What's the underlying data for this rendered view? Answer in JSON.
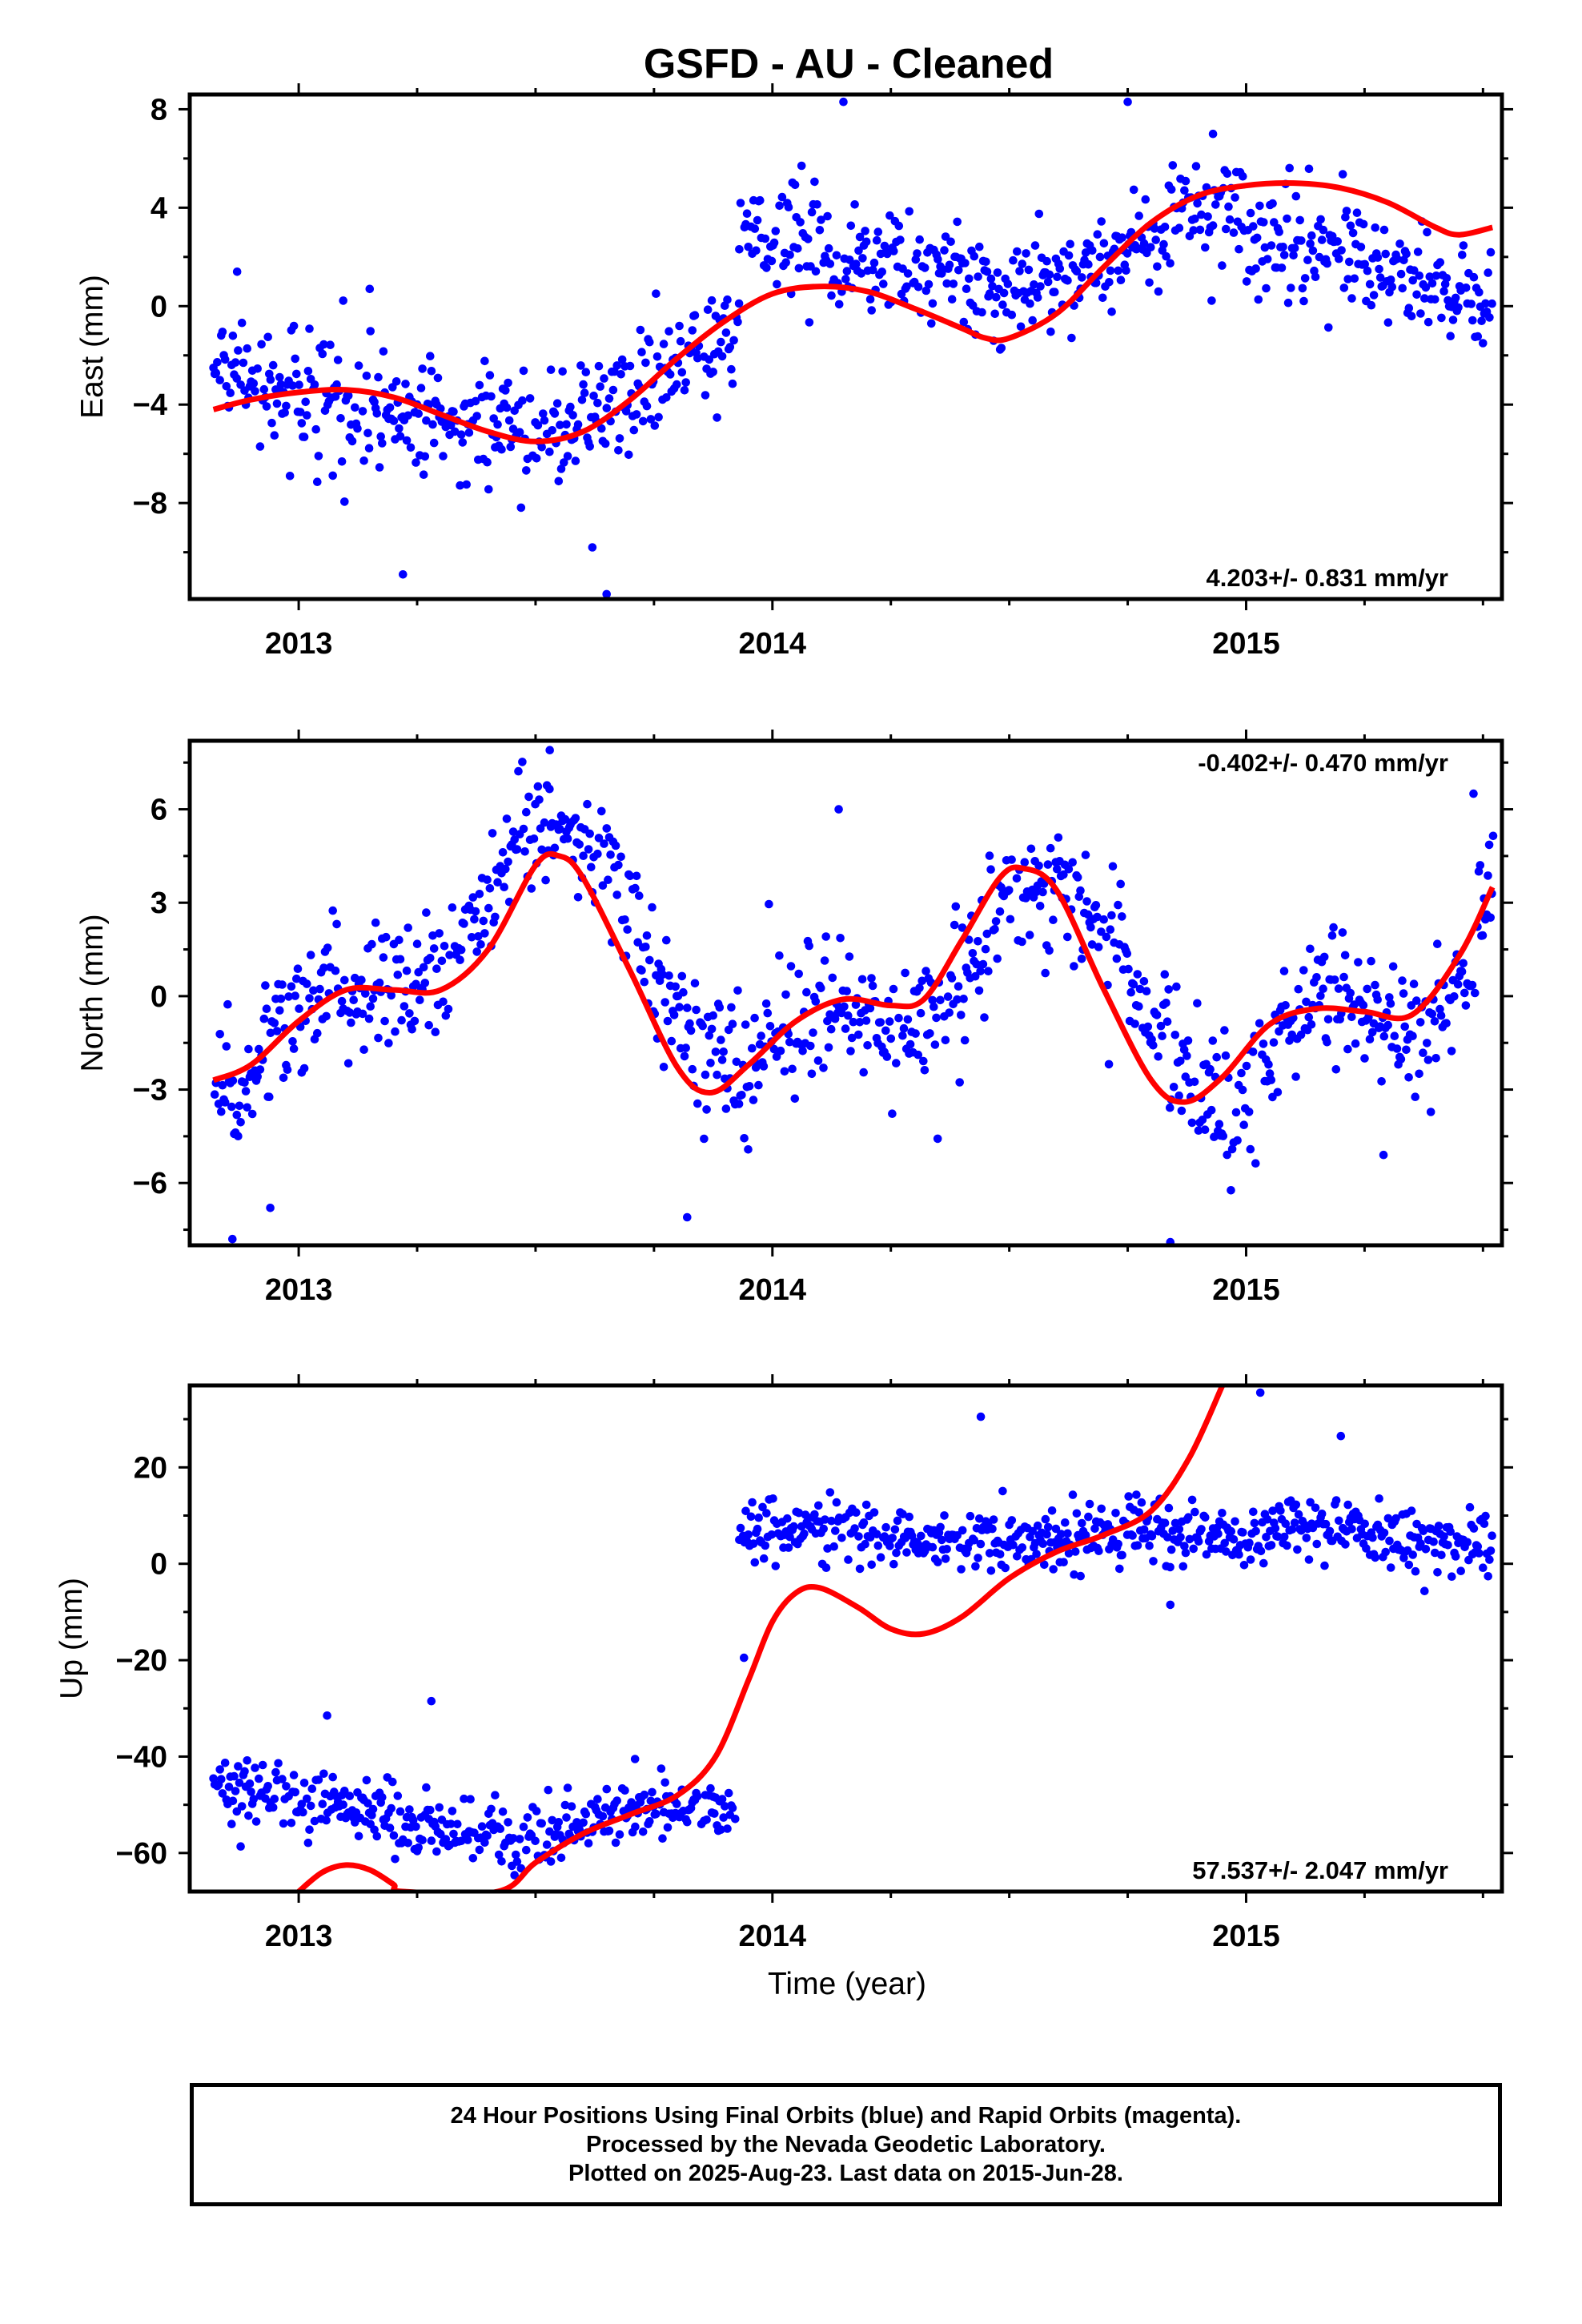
{
  "title": "GSFD  - AU - Cleaned",
  "x_axis_label": "Time (year)",
  "caption": [
    "24 Hour Positions Using Final Orbits (blue) and Rapid Orbits (magenta).",
    "Processed by the Nevada Geodetic Laboratory.",
    "Plotted on 2025-Aug-23. Last data on 2015-Jun-28."
  ],
  "colors": {
    "points": "#0000ff",
    "fit": "#ff0000",
    "axes": "#000000"
  },
  "chart_data": [
    {
      "type": "scatter",
      "ylabel": "East (mm)",
      "rate": "4.203+/- 0.831 mm/yr",
      "rate_position": "bottom-right",
      "xlim": [
        2012.77,
        2015.54
      ],
      "ylim": [
        -11.9,
        8.6
      ],
      "x_ticks": [
        2013,
        2014,
        2015
      ],
      "y_ticks": [
        -8,
        -4,
        0,
        4,
        8
      ],
      "grid": false,
      "point_segments": [
        {
          "x_start": 2012.82,
          "x_end": 2013.93,
          "y": [
            -2.5,
            -3.2,
            -3.5,
            -3.6,
            -4.2,
            -4.6,
            -4.7,
            -5.0,
            -5.2,
            -4.6,
            -4.1,
            -3.0,
            -1.8,
            -0.5
          ],
          "spread": 1.6
        },
        {
          "x_start": 2013.93,
          "x_end": 2015.52,
          "y": [
            4.0,
            3.0,
            2.3,
            1.8,
            1.5,
            1.1,
            1.0,
            0.6,
            0.8,
            1.4,
            2.4,
            3.6,
            4.0,
            3.2,
            2.4,
            2.5,
            2.0,
            1.0,
            0.4,
            0.2
          ],
          "spread": 1.5
        }
      ],
      "outliers": [
        {
          "x": 2013.22,
          "y": -10.9
        },
        {
          "x": 2013.65,
          "y": -11.7
        },
        {
          "x": 2013.62,
          "y": -9.8
        },
        {
          "x": 2014.15,
          "y": 8.3
        },
        {
          "x": 2014.75,
          "y": 8.3
        },
        {
          "x": 2014.93,
          "y": 7.0
        },
        {
          "x": 2012.87,
          "y": 1.4
        },
        {
          "x": 2013.15,
          "y": 0.7
        }
      ],
      "fit": {
        "x": [
          2012.82,
          2012.9,
          2013.0,
          2013.1,
          2013.2,
          2013.3,
          2013.4,
          2013.5,
          2013.6,
          2013.7,
          2013.8,
          2013.9,
          2014.0,
          2014.1,
          2014.2,
          2014.3,
          2014.4,
          2014.45,
          2014.5,
          2014.6,
          2014.7,
          2014.8,
          2014.9,
          2015.0,
          2015.1,
          2015.2,
          2015.3,
          2015.4,
          2015.45,
          2015.52
        ],
        "y": [
          -4.2,
          -3.8,
          -3.5,
          -3.4,
          -3.7,
          -4.4,
          -5.1,
          -5.5,
          -5.1,
          -3.8,
          -2.1,
          -0.6,
          0.5,
          0.8,
          0.6,
          -0.1,
          -0.9,
          -1.3,
          -1.3,
          -0.3,
          1.6,
          3.4,
          4.5,
          4.9,
          5.0,
          4.8,
          4.2,
          3.2,
          2.9,
          3.2
        ]
      }
    },
    {
      "type": "scatter",
      "ylabel": "North (mm)",
      "rate": "-0.402+/- 0.470 mm/yr",
      "rate_position": "top-right",
      "xlim": [
        2012.77,
        2015.54
      ],
      "ylim": [
        -8.0,
        8.2
      ],
      "x_ticks": [
        2013,
        2014,
        2015
      ],
      "y_ticks": [
        -6,
        -3,
        0,
        3,
        6
      ],
      "grid": false,
      "point_segments": [
        {
          "x_start": 2012.82,
          "x_end": 2015.52,
          "y": [
            -3.8,
            -2.2,
            -0.3,
            0.6,
            0.7,
            0.5,
            2.5,
            5.0,
            5.3,
            4.2,
            1.0,
            -1.6,
            -2.5,
            -1.4,
            -0.6,
            -0.9,
            -1.0,
            0.4,
            3.0,
            3.4,
            2.5,
            0.4,
            -2.2,
            -4.0,
            -1.8,
            0.2,
            -0.5,
            -1.2,
            -0.8,
            3.2
          ],
          "spread": 1.4
        }
      ],
      "outliers": [
        {
          "x": 2012.86,
          "y": -7.8
        },
        {
          "x": 2012.94,
          "y": -6.8
        },
        {
          "x": 2014.14,
          "y": 6.0
        },
        {
          "x": 2013.82,
          "y": -7.1
        },
        {
          "x": 2014.84,
          "y": -7.9
        },
        {
          "x": 2013.53,
          "y": 7.9
        },
        {
          "x": 2015.29,
          "y": -5.1
        },
        {
          "x": 2015.48,
          "y": 6.5
        }
      ],
      "fit": {
        "x": [
          2012.82,
          2012.9,
          2013.0,
          2013.1,
          2013.2,
          2013.3,
          2013.4,
          2013.5,
          2013.55,
          2013.6,
          2013.7,
          2013.8,
          2013.87,
          2013.95,
          2014.05,
          2014.15,
          2014.25,
          2014.32,
          2014.4,
          2014.48,
          2014.53,
          2014.6,
          2014.7,
          2014.8,
          2014.87,
          2014.95,
          2015.05,
          2015.15,
          2015.25,
          2015.35,
          2015.45,
          2015.52
        ],
        "y": [
          -2.7,
          -2.2,
          -0.8,
          0.2,
          0.2,
          0.2,
          1.5,
          4.2,
          4.5,
          3.8,
          0.8,
          -2.3,
          -3.1,
          -2.2,
          -0.8,
          -0.1,
          -0.3,
          -0.1,
          1.8,
          3.8,
          4.1,
          3.4,
          0.2,
          -2.7,
          -3.4,
          -2.6,
          -0.9,
          -0.4,
          -0.5,
          -0.6,
          1.3,
          3.5
        ]
      }
    },
    {
      "type": "scatter",
      "ylabel": "Up (mm)",
      "rate": "57.537+/- 2.047 mm/yr",
      "rate_position": "bottom-right",
      "xlim": [
        2012.77,
        2015.54
      ],
      "ylim": [
        -68,
        37
      ],
      "x_ticks": [
        2013,
        2014,
        2015
      ],
      "y_ticks": [
        -60,
        -40,
        -20,
        0,
        20
      ],
      "grid": false,
      "point_segments": [
        {
          "x_start": 2012.82,
          "x_end": 2013.92,
          "y": [
            -46,
            -47,
            -48,
            -50,
            -52,
            -54,
            -55,
            -57,
            -58,
            -56,
            -53,
            -51,
            -50,
            -50
          ],
          "spread": 4.5
        },
        {
          "x_start": 2013.93,
          "x_end": 2015.52,
          "y": [
            6,
            8,
            7,
            7,
            6,
            5,
            5,
            4,
            5,
            6,
            7,
            6,
            5,
            6,
            7,
            8,
            7,
            6,
            4,
            3
          ],
          "spread": 4.5
        }
      ],
      "outliers": [
        {
          "x": 2013.94,
          "y": -19.5
        },
        {
          "x": 2013.28,
          "y": -28.5
        },
        {
          "x": 2014.44,
          "y": 30.5
        },
        {
          "x": 2015.03,
          "y": 35.5
        },
        {
          "x": 2013.06,
          "y": -31.5
        },
        {
          "x": 2014.84,
          "y": -8.5
        },
        {
          "x": 2013.71,
          "y": -40.5
        },
        {
          "x": 2015.2,
          "y": 26.5
        }
      ],
      "fit": {
        "x": [
          2013.0,
          2013.05,
          2013.1,
          2013.15,
          2013.2,
          2013.22,
          2013.42,
          2013.5,
          2013.6,
          2013.7,
          2013.8,
          2013.88,
          2013.95,
          2014.0,
          2014.05,
          2014.1,
          2014.18,
          2014.25,
          2014.32,
          2014.4,
          2014.5,
          2014.6,
          2014.7,
          2014.8,
          2014.88,
          2014.95
        ],
        "y": [
          -68,
          -64,
          -62.5,
          -63.5,
          -66.5,
          -68,
          -68,
          -62,
          -56,
          -52,
          -48,
          -40,
          -24,
          -12,
          -6,
          -5,
          -9,
          -13.5,
          -14.5,
          -11,
          -3,
          2.5,
          6,
          11,
          22,
          37
        ]
      }
    }
  ]
}
